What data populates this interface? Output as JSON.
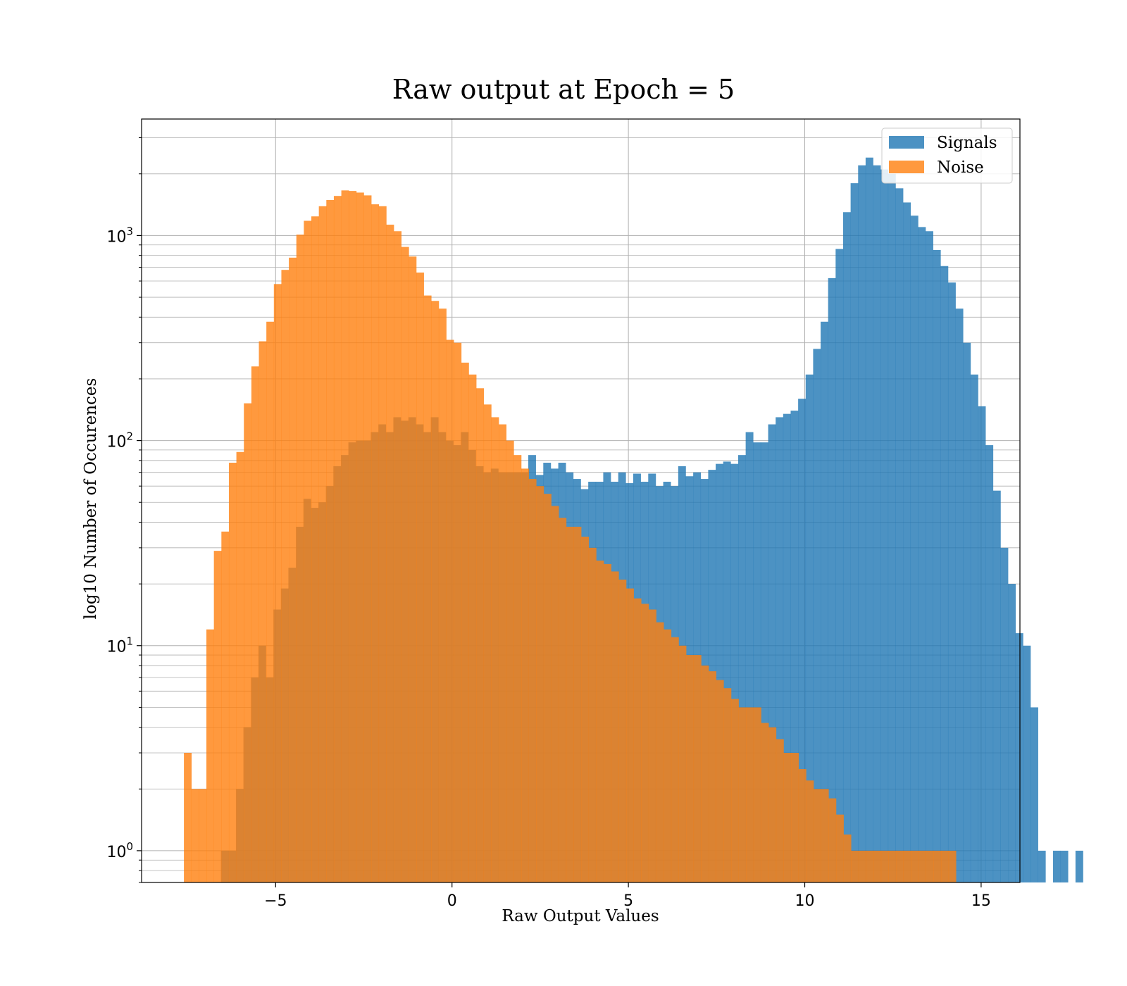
{
  "chart_data": {
    "type": "bar",
    "title": "Raw output at Epoch = 5",
    "xlabel": "Raw Output Values",
    "ylabel": "log10 Number of Occurences",
    "yscale": "log",
    "xlim": [
      -8.8,
      16.1
    ],
    "ylim": [
      0.7,
      3700
    ],
    "grid": true,
    "legend_position": "top-right",
    "x_ticks": [
      {
        "value": -5,
        "label": "−5"
      },
      {
        "value": 0,
        "label": "0"
      },
      {
        "value": 5,
        "label": "5"
      },
      {
        "value": 10,
        "label": "10"
      },
      {
        "value": 15,
        "label": "15"
      }
    ],
    "y_ticks": [
      {
        "value": 1,
        "base": "10",
        "exp": "0"
      },
      {
        "value": 10,
        "base": "10",
        "exp": "1"
      },
      {
        "value": 100,
        "base": "10",
        "exp": "2"
      },
      {
        "value": 1000,
        "base": "10",
        "exp": "3"
      }
    ],
    "series": [
      {
        "name": "Signals",
        "color": "#1f77b4",
        "opacity": 0.8,
        "bin_start": -6.55,
        "bin_width": 0.2125,
        "values": [
          1,
          1,
          2,
          4,
          7,
          10,
          7,
          15,
          19,
          24,
          38,
          52,
          47,
          50,
          60,
          75,
          85,
          98,
          100,
          100,
          110,
          120,
          110,
          130,
          125,
          130,
          120,
          110,
          130,
          110,
          100,
          95,
          110,
          90,
          75,
          70,
          73,
          70,
          70,
          70,
          70,
          85,
          68,
          78,
          73,
          78,
          70,
          65,
          58,
          63,
          63,
          70,
          63,
          70,
          62,
          69,
          63,
          69,
          60,
          63,
          60,
          75,
          67,
          70,
          65,
          72,
          77,
          79,
          77,
          85,
          110,
          98,
          98,
          120,
          130,
          135,
          140,
          160,
          210,
          280,
          380,
          620,
          860,
          1300,
          1800,
          2200,
          2400,
          2200,
          2100,
          2000,
          1700,
          1450,
          1250,
          1100,
          1050,
          850,
          710,
          590,
          440,
          300,
          210,
          147,
          95,
          57,
          30,
          20,
          11.5,
          10,
          5,
          1,
          0,
          1,
          1,
          0,
          1
        ]
      },
      {
        "name": "Noise",
        "color": "#ff7f0e",
        "opacity": 0.8,
        "bin_start": -7.6,
        "bin_width": 0.2125,
        "values": [
          3,
          2,
          2,
          12,
          29,
          36,
          78,
          88,
          152,
          230,
          305,
          380,
          580,
          680,
          780,
          1010,
          1180,
          1240,
          1390,
          1490,
          1560,
          1660,
          1650,
          1620,
          1570,
          1420,
          1390,
          1130,
          1050,
          880,
          790,
          660,
          510,
          480,
          440,
          310,
          300,
          240,
          210,
          180,
          150,
          130,
          120,
          100,
          85,
          73,
          65,
          60,
          55,
          48,
          42,
          38,
          38,
          34,
          30,
          26,
          25,
          23,
          21,
          19,
          17,
          16,
          15,
          13,
          12,
          11,
          10,
          9,
          9,
          8,
          7.5,
          6.8,
          6.2,
          5.5,
          5,
          5,
          5,
          4.2,
          4,
          3.5,
          3,
          3,
          2.5,
          2.2,
          2,
          2,
          1.8,
          1.5,
          1.2,
          1,
          1,
          1,
          1,
          1,
          1,
          1,
          1,
          1,
          1,
          1,
          1,
          1,
          1
        ]
      }
    ]
  }
}
